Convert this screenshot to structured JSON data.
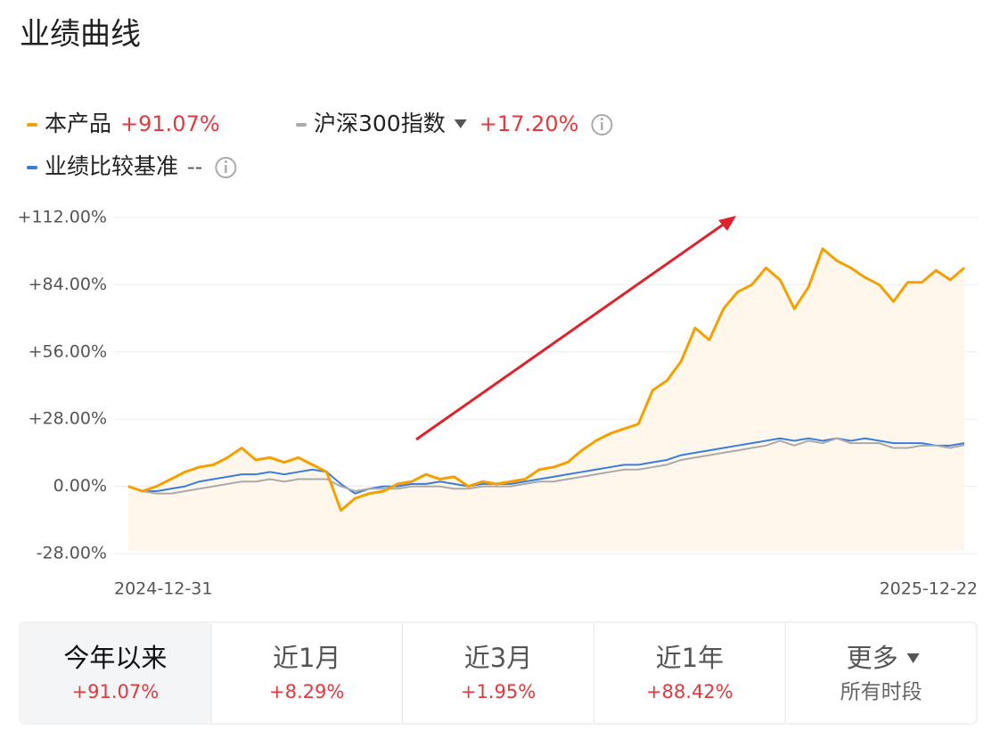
{
  "header": {
    "title": "业绩曲线"
  },
  "chart_data": {
    "type": "line",
    "categories": [
      "2024-12-31",
      null,
      null,
      null,
      null,
      null,
      null,
      null,
      null,
      null,
      null,
      null,
      null,
      null,
      null,
      null,
      null,
      null,
      null,
      null,
      null,
      null,
      null,
      null,
      null,
      null,
      null,
      null,
      null,
      null,
      null,
      null,
      null,
      null,
      null,
      null,
      null,
      null,
      null,
      null,
      null,
      null,
      null,
      null,
      null,
      null,
      null,
      null,
      null,
      null,
      null,
      null,
      null,
      null,
      null,
      null,
      null,
      null,
      null,
      "2025-12-22"
    ],
    "series": [
      {
        "name": "本产品",
        "color": "#f5a000",
        "summary": "+91.07%",
        "fill": "#fff7ec",
        "values": [
          0,
          -2,
          0,
          3,
          6,
          8,
          9,
          12,
          16,
          11,
          12,
          10,
          12,
          9,
          6,
          -10,
          -5,
          -3,
          -2,
          1,
          2,
          5,
          3,
          4,
          0,
          2,
          1,
          2,
          3,
          7,
          8,
          10,
          15,
          19,
          22,
          24,
          26,
          40,
          44,
          52,
          66,
          61,
          74,
          81,
          84,
          91,
          86,
          74,
          83,
          99,
          94,
          91,
          87,
          84,
          77,
          85,
          85,
          90,
          86,
          91.07
        ]
      },
      {
        "name": "沪深300指数",
        "color": "#aaaaaa",
        "summary": "+17.20%",
        "values": [
          0,
          -2,
          -3,
          -3,
          -2,
          -1,
          0,
          1,
          2,
          2,
          3,
          2,
          3,
          3,
          3,
          0,
          -2,
          -1,
          -1,
          -1,
          0,
          0,
          0,
          -1,
          -1,
          0,
          0,
          0,
          1,
          2,
          2,
          3,
          4,
          5,
          6,
          7,
          7,
          8,
          9,
          11,
          12,
          13,
          14,
          15,
          16,
          17,
          19,
          17,
          19,
          18,
          20,
          18,
          18,
          18,
          16,
          16,
          17,
          17,
          16,
          17.2
        ]
      },
      {
        "name": "业绩比较基准",
        "color": "#3a7be0",
        "summary": "--",
        "values": [
          0,
          -2,
          -2,
          -1,
          0,
          2,
          3,
          4,
          5,
          5,
          6,
          5,
          6,
          7,
          6,
          1,
          -3,
          -1,
          0,
          0,
          1,
          1,
          2,
          1,
          0,
          1,
          1,
          1,
          2,
          3,
          4,
          5,
          6,
          7,
          8,
          9,
          9,
          10,
          11,
          13,
          14,
          15,
          16,
          17,
          18,
          19,
          20,
          19,
          20,
          19,
          20,
          19,
          20,
          19,
          18,
          18,
          18,
          17,
          17,
          18
        ]
      }
    ],
    "ylim": [
      -28,
      112
    ],
    "yticks": [
      {
        "value": -28,
        "label": "-28.00%"
      },
      {
        "value": 0,
        "label": "0.00%"
      },
      {
        "value": 28,
        "label": "+28.00%"
      },
      {
        "value": 56,
        "label": "+56.00%"
      },
      {
        "value": 84,
        "label": "+84.00%"
      },
      {
        "value": 112,
        "label": "+112.00%"
      }
    ],
    "grid": true
  },
  "tabs": [
    {
      "label": "今年以来",
      "value": "+91.07%"
    },
    {
      "label": "近1月",
      "value": "+8.29%"
    },
    {
      "label": "近3月",
      "value": "+1.95%"
    },
    {
      "label": "近1年",
      "value": "+88.42%"
    },
    {
      "label": "更多",
      "value": "所有时段"
    }
  ]
}
